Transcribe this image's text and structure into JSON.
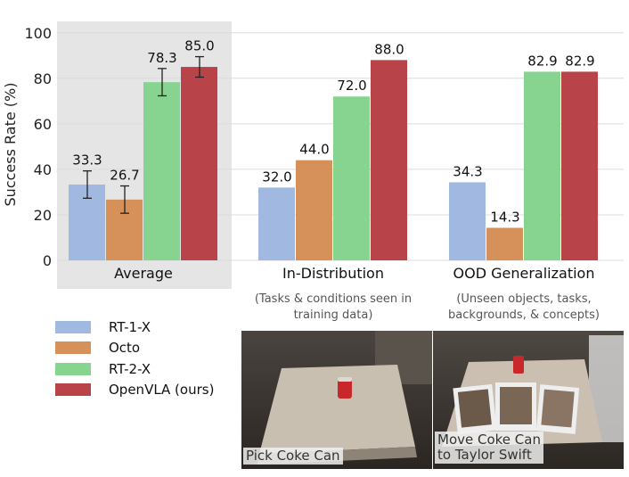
{
  "chart_data": {
    "type": "bar",
    "ylabel": "Success Rate (%)",
    "ylim": [
      0,
      105
    ],
    "yticks": [
      "0",
      "20",
      "40",
      "60",
      "80",
      "100"
    ],
    "grid": true,
    "categories": [
      "Average",
      "In-Distribution",
      "OOD Generalization"
    ],
    "category_notes": [
      "",
      "(Tasks & conditions seen in training data)",
      "(Unseen objects, tasks, backgrounds, & concepts)"
    ],
    "category_notes_lines": [
      [],
      [
        "(Tasks & conditions seen in",
        "training data)"
      ],
      [
        "(Unseen objects, tasks,",
        "backgrounds, & concepts)"
      ]
    ],
    "highlighted_category": "Average",
    "series": [
      {
        "name": "RT-1-X",
        "color": "#a1b9e0",
        "values": [
          33.3,
          32.0,
          34.3
        ],
        "labels": [
          "33.3",
          "32.0",
          "34.3"
        ],
        "error": [
          6,
          null,
          null
        ]
      },
      {
        "name": "Octo",
        "color": "#d6915b",
        "values": [
          26.7,
          44.0,
          14.3
        ],
        "labels": [
          "26.7",
          "44.0",
          "14.3"
        ],
        "error": [
          6,
          null,
          null
        ]
      },
      {
        "name": "RT-2-X",
        "color": "#87d491",
        "values": [
          78.3,
          72.0,
          82.9
        ],
        "labels": [
          "78.3",
          "72.0",
          "82.9"
        ],
        "error": [
          6,
          null,
          null
        ]
      },
      {
        "name": "OpenVLA (ours)",
        "color": "#b84449",
        "values": [
          85.0,
          88.0,
          82.9
        ],
        "labels": [
          "85.0",
          "88.0",
          "82.9"
        ],
        "error": [
          4.5,
          null,
          null
        ]
      }
    ],
    "legend_position": "bottom-left"
  },
  "photos": [
    {
      "caption_lines": [
        "Pick Coke Can"
      ]
    },
    {
      "caption_lines": [
        "Move Coke Can",
        "to Taylor Swift"
      ]
    }
  ]
}
